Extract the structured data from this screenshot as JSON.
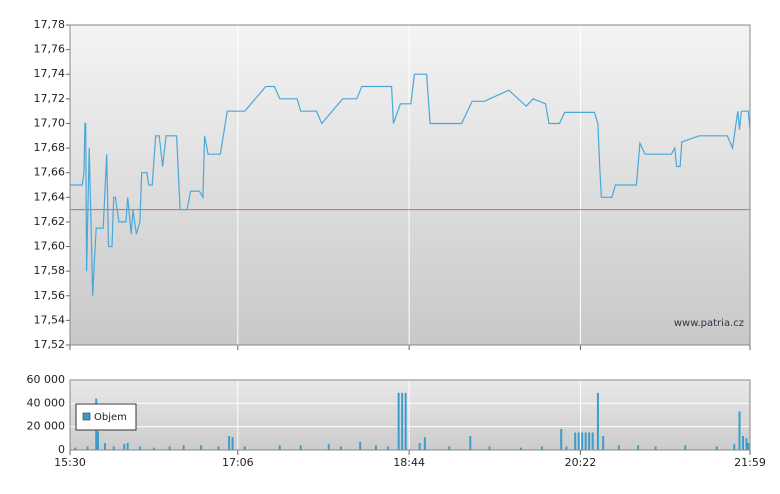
{
  "chart_data": [
    {
      "type": "line",
      "annotation": "www.patria.cz",
      "color": "#4aa8d8",
      "grid": true,
      "reference_line": {
        "value": 17.63,
        "color": "#e06060"
      },
      "xlim": [
        930,
        1319
      ],
      "ylim": [
        17.52,
        17.78
      ],
      "yticks": [
        {
          "value": 17.52,
          "label": "17,52"
        },
        {
          "value": 17.54,
          "label": "17,54"
        },
        {
          "value": 17.56,
          "label": "17,56"
        },
        {
          "value": 17.58,
          "label": "17,58"
        },
        {
          "value": 17.6,
          "label": "17,60"
        },
        {
          "value": 17.62,
          "label": "17,62"
        },
        {
          "value": 17.64,
          "label": "17,64"
        },
        {
          "value": 17.66,
          "label": "17,66"
        },
        {
          "value": 17.68,
          "label": "17,68"
        },
        {
          "value": 17.7,
          "label": "17,70"
        },
        {
          "value": 17.72,
          "label": "17,72"
        },
        {
          "value": 17.74,
          "label": "17,74"
        },
        {
          "value": 17.76,
          "label": "17,76"
        },
        {
          "value": 17.78,
          "label": "17,78"
        }
      ],
      "x": [
        930,
        937,
        938,
        938.5,
        939,
        939.5,
        941,
        942,
        943,
        944,
        945,
        949,
        951,
        952,
        954,
        955,
        956,
        958,
        962,
        963,
        965,
        966,
        968,
        970,
        971,
        974,
        975,
        977,
        979,
        981,
        983,
        985,
        991,
        993,
        997,
        999,
        1004,
        1006,
        1007,
        1009,
        1016,
        1020,
        1030,
        1042,
        1047,
        1050,
        1060,
        1062,
        1071,
        1074,
        1086,
        1094,
        1097,
        1114,
        1115,
        1119,
        1125,
        1127,
        1134,
        1136,
        1154,
        1160,
        1167,
        1181,
        1191,
        1195,
        1202,
        1204,
        1210,
        1213,
        1230,
        1232,
        1233,
        1234,
        1240,
        1242,
        1254,
        1256,
        1259,
        1274,
        1276,
        1277,
        1279,
        1280,
        1290,
        1306,
        1309,
        1312,
        1313,
        1314,
        1318,
        1319
      ],
      "values": [
        17.65,
        17.65,
        17.66,
        17.7,
        17.7,
        17.58,
        17.68,
        17.62,
        17.56,
        17.59,
        17.615,
        17.615,
        17.675,
        17.6,
        17.6,
        17.64,
        17.64,
        17.62,
        17.62,
        17.64,
        17.61,
        17.63,
        17.61,
        17.62,
        17.66,
        17.66,
        17.65,
        17.65,
        17.69,
        17.69,
        17.665,
        17.69,
        17.69,
        17.63,
        17.63,
        17.645,
        17.645,
        17.64,
        17.69,
        17.675,
        17.675,
        17.71,
        17.71,
        17.73,
        17.73,
        17.72,
        17.72,
        17.71,
        17.71,
        17.7,
        17.72,
        17.72,
        17.73,
        17.73,
        17.7,
        17.716,
        17.716,
        17.74,
        17.74,
        17.7,
        17.7,
        17.718,
        17.718,
        17.727,
        17.714,
        17.72,
        17.716,
        17.7,
        17.7,
        17.709,
        17.709,
        17.7,
        17.665,
        17.64,
        17.64,
        17.65,
        17.65,
        17.684,
        17.675,
        17.675,
        17.68,
        17.665,
        17.665,
        17.685,
        17.69,
        17.69,
        17.68,
        17.71,
        17.695,
        17.71,
        17.71,
        17.695
      ]
    },
    {
      "type": "bar",
      "legend": "top-left",
      "grid": true,
      "xlim": [
        930,
        1319
      ],
      "ylim": [
        0,
        60000
      ],
      "xticks": [
        {
          "value": 930,
          "label": "15:30"
        },
        {
          "value": 1026,
          "label": "17:06"
        },
        {
          "value": 1124,
          "label": "18:44"
        },
        {
          "value": 1222,
          "label": "20:22"
        },
        {
          "value": 1319,
          "label": "21:59"
        }
      ],
      "yticks": [
        0,
        {
          "value": 20000,
          "label": "20 000"
        },
        {
          "value": 40000,
          "label": "40 000"
        },
        {
          "value": 60000,
          "label": "60 000"
        }
      ],
      "x": [
        933,
        940,
        945,
        946,
        950,
        955,
        961,
        963,
        970,
        978,
        987,
        995,
        1005,
        1015,
        1021,
        1023,
        1030,
        1050,
        1062,
        1078,
        1085,
        1096,
        1105,
        1112,
        1118,
        1120,
        1122,
        1130,
        1133,
        1147,
        1159,
        1170,
        1188,
        1200,
        1211,
        1214,
        1219,
        1221,
        1223,
        1225,
        1227,
        1229,
        1232,
        1235,
        1244,
        1255,
        1265,
        1282,
        1300,
        1310,
        1313,
        1315,
        1317,
        1318
      ],
      "series": [
        {
          "name": "Objem",
          "color": "#3c9ccc",
          "values": [
            2000,
            3000,
            44000,
            16000,
            6000,
            3000,
            5000,
            6000,
            3000,
            2000,
            3000,
            4000,
            4000,
            3000,
            12000,
            11000,
            3000,
            4000,
            4000,
            5000,
            3000,
            7000,
            4000,
            3000,
            49000,
            49000,
            49000,
            6000,
            11000,
            3000,
            12000,
            3000,
            2000,
            3000,
            18000,
            3000,
            15000,
            15000,
            15000,
            15000,
            15000,
            15000,
            49000,
            12000,
            4000,
            4000,
            3000,
            4000,
            3000,
            5000,
            33000,
            12000,
            10000,
            6000
          ]
        }
      ]
    }
  ]
}
